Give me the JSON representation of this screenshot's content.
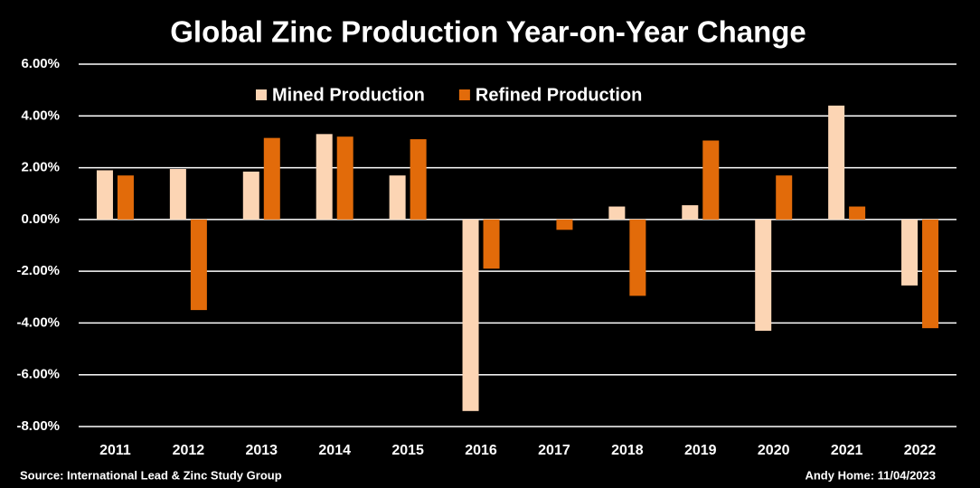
{
  "chart_data": {
    "type": "bar",
    "title": "Global Zinc Production Year-on-Year Change",
    "categories": [
      "2011",
      "2012",
      "2013",
      "2014",
      "2015",
      "2016",
      "2017",
      "2018",
      "2019",
      "2020",
      "2021",
      "2022"
    ],
    "series": [
      {
        "name": "Mined Production",
        "color": "#fcd5b4",
        "values": [
          1.9,
          1.95,
          1.85,
          3.3,
          1.7,
          -7.4,
          0,
          0.5,
          0.55,
          -4.3,
          4.4,
          -2.55
        ]
      },
      {
        "name": "Refined Production",
        "color": "#e26b0a",
        "values": [
          1.7,
          -3.5,
          3.15,
          3.2,
          3.1,
          -1.9,
          -0.4,
          -2.95,
          3.05,
          1.7,
          0.5,
          -4.2
        ]
      }
    ],
    "ylim": [
      -8,
      6
    ],
    "yticks": [
      {
        "value": -8,
        "label": "-8.00%"
      },
      {
        "value": -6,
        "label": "-6.00%"
      },
      {
        "value": -4,
        "label": "-4.00%"
      },
      {
        "value": -2,
        "label": "-2.00%"
      },
      {
        "value": 0,
        "label": "0.00%"
      },
      {
        "value": 2,
        "label": "2.00%"
      },
      {
        "value": 4,
        "label": "4.00%"
      },
      {
        "value": 6,
        "label": "6.00%"
      }
    ],
    "grid": true,
    "source": "Source: International Lead & Zinc Study Group",
    "credit": "Andy Home: 11/04/2023"
  }
}
